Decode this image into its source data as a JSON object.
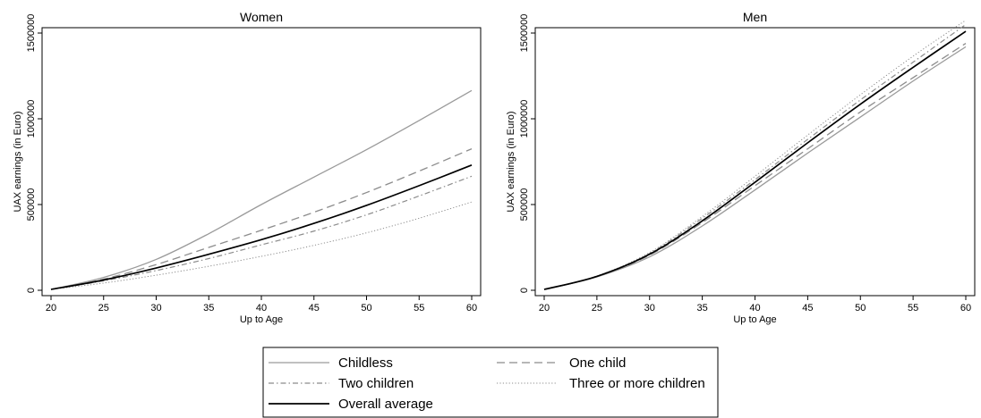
{
  "chart_data": [
    {
      "type": "line",
      "title": "Women",
      "xlabel": "Up to Age",
      "ylabel": "UAX earnings (in Euro)",
      "xlim": [
        20,
        60
      ],
      "ylim": [
        0,
        1500000
      ],
      "xticks": [
        "20",
        "25",
        "30",
        "35",
        "40",
        "45",
        "50",
        "55",
        "60"
      ],
      "yticks": [
        "0",
        "500000",
        "1000000",
        "1500000"
      ],
      "x": [
        20,
        25,
        30,
        35,
        40,
        45,
        50,
        55,
        60
      ],
      "series": [
        {
          "name": "Childless",
          "style": "solid-gray",
          "values": [
            5000,
            75000,
            180000,
            330000,
            500000,
            660000,
            820000,
            990000,
            1165000
          ]
        },
        {
          "name": "One child",
          "style": "dash",
          "values": [
            5000,
            65000,
            150000,
            250000,
            350000,
            455000,
            570000,
            695000,
            825000
          ]
        },
        {
          "name": "Two children",
          "style": "dashdot",
          "values": [
            5000,
            55000,
            115000,
            185000,
            265000,
            345000,
            440000,
            550000,
            665000
          ]
        },
        {
          "name": "Three or more children",
          "style": "dot",
          "values": [
            5000,
            42000,
            88000,
            140000,
            198000,
            262000,
            335000,
            420000,
            515000
          ]
        },
        {
          "name": "Overall average",
          "style": "solid-black",
          "values": [
            5000,
            60000,
            130000,
            210000,
            295000,
            390000,
            495000,
            610000,
            730000
          ]
        }
      ],
      "grid": false
    },
    {
      "type": "line",
      "title": "Men",
      "xlabel": "Up to Age",
      "ylabel": "UAX earnings (in Euro)",
      "xlim": [
        20,
        60
      ],
      "ylim": [
        0,
        1500000
      ],
      "xticks": [
        "20",
        "25",
        "30",
        "35",
        "40",
        "45",
        "50",
        "55",
        "60"
      ],
      "yticks": [
        "0",
        "500000",
        "1000000",
        "1500000"
      ],
      "x": [
        20,
        25,
        30,
        35,
        40,
        45,
        50,
        55,
        60
      ],
      "series": [
        {
          "name": "Childless",
          "style": "solid-gray",
          "values": [
            5000,
            78000,
            195000,
            375000,
            585000,
            800000,
            1010000,
            1220000,
            1420000
          ]
        },
        {
          "name": "One child",
          "style": "dash",
          "values": [
            5000,
            80000,
            205000,
            395000,
            610000,
            825000,
            1040000,
            1240000,
            1440000
          ]
        },
        {
          "name": "Two children",
          "style": "dashdot",
          "values": [
            5000,
            82000,
            215000,
            420000,
            645000,
            880000,
            1110000,
            1330000,
            1550000
          ]
        },
        {
          "name": "Three or more children",
          "style": "dot",
          "values": [
            5000,
            83000,
            220000,
            430000,
            665000,
            905000,
            1140000,
            1365000,
            1575000
          ]
        },
        {
          "name": "Overall average",
          "style": "solid-black",
          "values": [
            5000,
            81000,
            210000,
            405000,
            630000,
            860000,
            1085000,
            1300000,
            1510000
          ]
        }
      ],
      "grid": false
    }
  ],
  "legend": {
    "placement": "bottom-center",
    "entries": [
      "Childless",
      "One child",
      "Two children",
      "Three or more children",
      "Overall average"
    ]
  }
}
